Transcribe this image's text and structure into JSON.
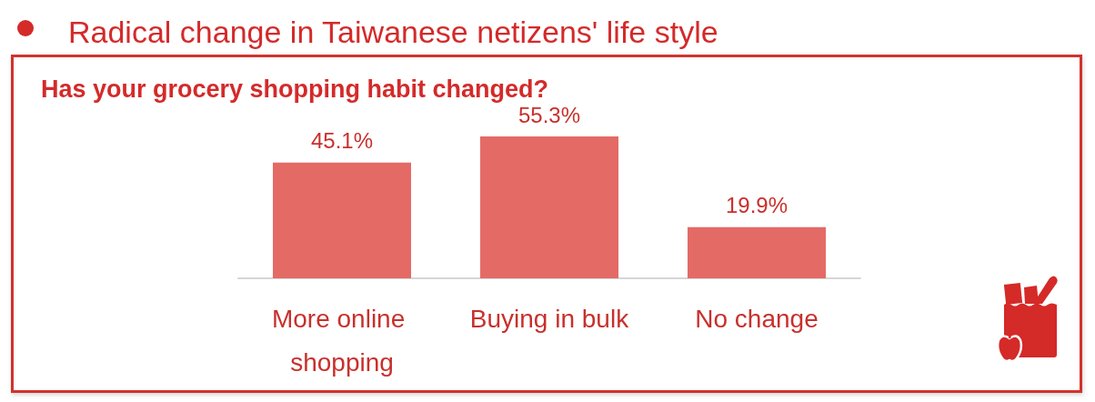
{
  "chart_data": {
    "type": "bar",
    "title": "Radical change in Taiwanese netizens' life style",
    "subtitle": "Has your grocery shopping habit changed?",
    "categories": [
      "More online shopping",
      "Buying in bulk",
      "No change"
    ],
    "values": [
      45.1,
      55.3,
      19.9
    ],
    "value_labels": [
      "45.1%",
      "55.3%",
      "19.9%"
    ],
    "color": "#e46a66"
  }
}
